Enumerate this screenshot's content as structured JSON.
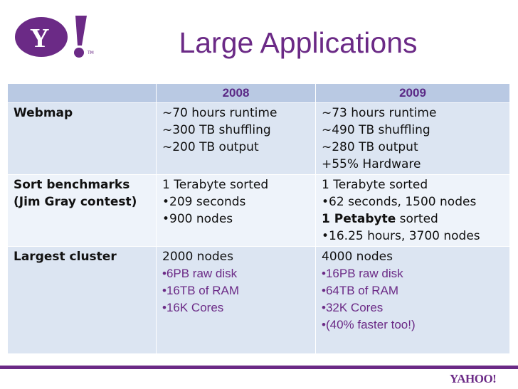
{
  "slide": {
    "title": "Large Applications"
  },
  "logo": {
    "text": "Y!",
    "footer_text": "YAHOO!"
  },
  "table": {
    "columns": [
      "",
      "2008",
      "2009"
    ],
    "rows": [
      {
        "label": [
          "Webmap"
        ],
        "c2008": [
          "~70 hours runtime",
          "~300 TB shuffling",
          "~200 TB output"
        ],
        "c2009": [
          "~73 hours runtime",
          "~490 TB shuffling",
          "~280 TB output",
          "+55% Hardware"
        ]
      },
      {
        "label": [
          "Sort benchmarks",
          "(Jim Gray contest)"
        ],
        "c2008": [
          "1 Terabyte sorted",
          "•209 seconds",
          "•900 nodes"
        ],
        "c2009": [
          "1 Terabyte sorted",
          "•62 seconds, 1500 nodes",
          "1 Petabyte",
          " sorted",
          "•16.25 hours, 3700 nodes"
        ]
      },
      {
        "label": [
          "Largest cluster"
        ],
        "c2008": [
          "2000 nodes",
          "•6PB raw disk",
          "•16TB of RAM",
          "•16K Cores"
        ],
        "c2009": [
          "4000 nodes",
          "•16PB raw disk",
          "•64TB of RAM",
          "•32K Cores",
          "•(40% faster too!)"
        ]
      }
    ]
  },
  "colors": {
    "accent": "#6b2a86",
    "header_bg": "#b9c9e3",
    "row_dark": "#dce5f2",
    "row_light": "#eef3fa"
  }
}
